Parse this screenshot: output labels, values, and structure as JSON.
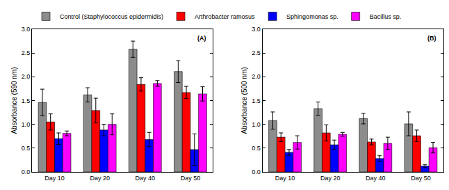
{
  "chart_data": [
    {
      "type": "bar",
      "y_label": "Absorbance (590 nm)",
      "annotations": [
        {
          "text": "(A)"
        }
      ],
      "categories": [
        "Day 10",
        "Day 20",
        "Day 40",
        "Day 50"
      ],
      "series": [
        {
          "name": "Control (Staphylococcus epidermidis)",
          "color": "#8c8c8c",
          "values": [
            1.46,
            1.62,
            2.58,
            2.11
          ],
          "error": [
            0.28,
            0.15,
            0.17,
            0.23
          ]
        },
        {
          "name": "Arthrobacter ramosus",
          "color": "#ff0000",
          "values": [
            1.05,
            1.29,
            1.84,
            1.67
          ],
          "error": [
            0.17,
            0.26,
            0.14,
            0.13
          ]
        },
        {
          "name": "Sphingomonas sp.",
          "color": "#0000ff",
          "values": [
            0.7,
            0.88,
            0.68,
            0.47
          ],
          "error": [
            0.12,
            0.12,
            0.15,
            0.33
          ]
        },
        {
          "name": "Bacillus sp.",
          "color": "#ff00ff",
          "values": [
            0.81,
            1.0,
            1.86,
            1.64
          ],
          "error": [
            0.05,
            0.22,
            0.06,
            0.15
          ]
        }
      ],
      "ylim": [
        0,
        3
      ],
      "yticks": [
        {
          "value": 0,
          "label": "0.0"
        },
        0.5,
        {
          "value": 1,
          "label": "1.0"
        },
        1.5,
        {
          "value": 2,
          "label": "2.0"
        },
        2.5,
        {
          "value": 3,
          "label": "3.0"
        }
      ],
      "legend": "top",
      "grid": false
    },
    {
      "type": "bar",
      "y_label": "Absorbance (500 nm)",
      "annotations": [
        {
          "text": "(B)"
        }
      ],
      "categories": [
        "Day 10",
        "Day 20",
        "Day 40",
        "Day 50"
      ],
      "series": [
        {
          "color": "#8c8c8c",
          "values": [
            1.08,
            1.33,
            1.12,
            1.01
          ],
          "error": [
            0.18,
            0.14,
            0.11,
            0.25
          ]
        },
        {
          "color": "#ff0000",
          "values": [
            0.73,
            0.82,
            0.63,
            0.76
          ],
          "error": [
            0.09,
            0.17,
            0.06,
            0.12
          ]
        },
        {
          "color": "#0000ff",
          "values": [
            0.41,
            0.57,
            0.28,
            0.12
          ],
          "error": [
            0.06,
            0.1,
            0.06,
            0.03
          ]
        },
        {
          "color": "#ff00ff",
          "values": [
            0.62,
            0.79,
            0.6,
            0.51
          ],
          "error": [
            0.14,
            0.04,
            0.13,
            0.11
          ]
        }
      ],
      "ylim": [
        0,
        3
      ],
      "yticks": [
        {
          "value": 0,
          "label": "0.0"
        },
        0.5,
        {
          "value": 1,
          "label": "1.0"
        },
        1.5,
        {
          "value": 2,
          "label": "2.0"
        },
        2.5,
        {
          "value": 3,
          "label": "3.0"
        }
      ],
      "grid": false
    }
  ]
}
